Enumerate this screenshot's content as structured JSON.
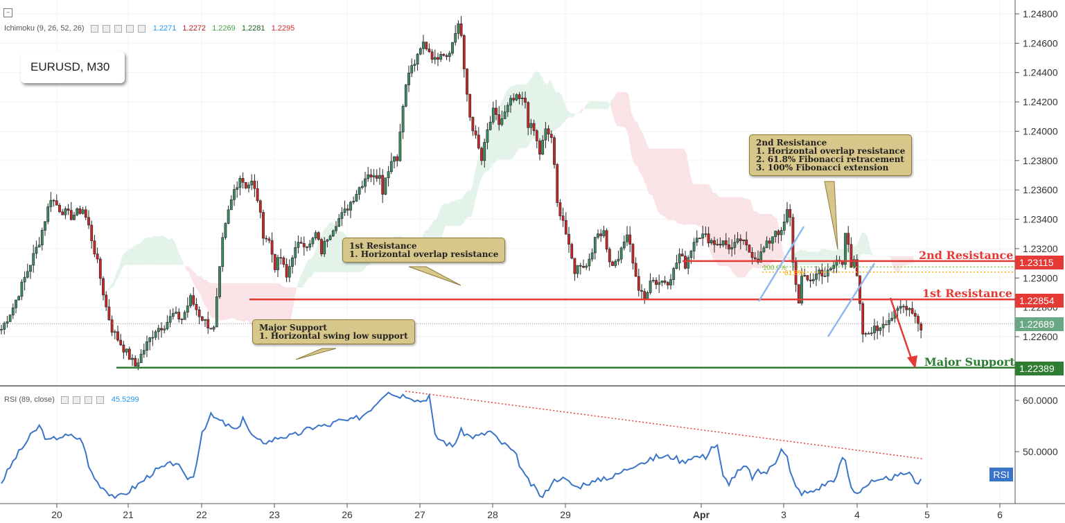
{
  "chart_data": {
    "type": "candlestick",
    "symbol_box": "EURUSD, M30",
    "price_axis": {
      "ticks": [
        "1.24800",
        "1.24600",
        "1.24400",
        "1.24200",
        "1.24000",
        "1.23800",
        "1.23600",
        "1.23400",
        "1.23200",
        "1.23000",
        "1.22800",
        "1.22600"
      ],
      "ylim": [
        1.2223,
        1.2489
      ]
    },
    "time_axis": {
      "ticks": [
        "20",
        "21",
        "22",
        "23",
        "26",
        "27",
        "28",
        "29",
        "Apr",
        "3",
        "4",
        "5",
        "6"
      ]
    },
    "ichimoku": {
      "label": "Ichimoku (9, 26, 52, 26)",
      "values": [
        {
          "text": "1.2271",
          "color": "#2196f3"
        },
        {
          "text": "1.2272",
          "color": "#b71c1c"
        },
        {
          "text": "1.2269",
          "color": "#43a047"
        },
        {
          "text": "1.2281",
          "color": "#1b5e20"
        },
        {
          "text": "1.2295",
          "color": "#d32f2f"
        }
      ]
    },
    "close_price_points": [
      [
        0,
        1.2265
      ],
      [
        4,
        1.228
      ],
      [
        8,
        1.23
      ],
      [
        13,
        1.2325
      ],
      [
        17,
        1.2355
      ],
      [
        20,
        1.2347
      ],
      [
        24,
        1.2342
      ],
      [
        28,
        1.2347
      ],
      [
        30,
        1.2335
      ],
      [
        33,
        1.231
      ],
      [
        36,
        1.228
      ],
      [
        38,
        1.2265
      ],
      [
        42,
        1.2252
      ],
      [
        46,
        1.224
      ],
      [
        50,
        1.2255
      ],
      [
        53,
        1.2265
      ],
      [
        56,
        1.2268
      ],
      [
        59,
        1.2275
      ],
      [
        62,
        1.2272
      ],
      [
        65,
        1.2286
      ],
      [
        68,
        1.2275
      ],
      [
        71,
        1.2268
      ],
      [
        73,
        1.2265
      ],
      [
        76,
        1.2325
      ],
      [
        78,
        1.2345
      ],
      [
        80,
        1.236
      ],
      [
        82,
        1.2369
      ],
      [
        84,
        1.2363
      ],
      [
        86,
        1.2365
      ],
      [
        88,
        1.2354
      ],
      [
        90,
        1.233
      ],
      [
        92,
        1.2325
      ],
      [
        94,
        1.2308
      ],
      [
        96,
        1.2314
      ],
      [
        98,
        1.23
      ],
      [
        100,
        1.2316
      ],
      [
        103,
        1.2325
      ],
      [
        106,
        1.2322
      ],
      [
        108,
        1.233
      ],
      [
        110,
        1.2318
      ],
      [
        112,
        1.2328
      ],
      [
        115,
        1.2338
      ],
      [
        118,
        1.2345
      ],
      [
        121,
        1.2355
      ],
      [
        124,
        1.2365
      ],
      [
        126,
        1.2372
      ],
      [
        128,
        1.2368
      ],
      [
        130,
        1.2372
      ],
      [
        131,
        1.236
      ],
      [
        133,
        1.2375
      ],
      [
        135,
        1.2385
      ],
      [
        136,
        1.238
      ],
      [
        138,
        1.242
      ],
      [
        140,
        1.244
      ],
      [
        143,
        1.245
      ],
      [
        145,
        1.246
      ],
      [
        147,
        1.2455
      ],
      [
        149,
        1.2448
      ],
      [
        151,
        1.2455
      ],
      [
        153,
        1.2452
      ],
      [
        155,
        1.246
      ],
      [
        157,
        1.2474
      ],
      [
        158,
        1.2465
      ],
      [
        159,
        1.244
      ],
      [
        161,
        1.241
      ],
      [
        163,
        1.2395
      ],
      [
        165,
        1.238
      ],
      [
        167,
        1.24
      ],
      [
        169,
        1.2413
      ],
      [
        171,
        1.2405
      ],
      [
        173,
        1.2412
      ],
      [
        175,
        1.242
      ],
      [
        177,
        1.2422
      ],
      [
        180,
        1.242
      ],
      [
        181,
        1.2405
      ],
      [
        183,
        1.24
      ],
      [
        185,
        1.2385
      ],
      [
        187,
        1.24
      ],
      [
        189,
        1.2396
      ],
      [
        190,
        1.2375
      ],
      [
        191,
        1.235
      ],
      [
        193,
        1.234
      ],
      [
        195,
        1.232
      ],
      [
        197,
        1.2305
      ],
      [
        199,
        1.231
      ],
      [
        201,
        1.2308
      ],
      [
        203,
        1.232
      ],
      [
        205,
        1.233
      ],
      [
        207,
        1.2333
      ],
      [
        209,
        1.231
      ],
      [
        211,
        1.231
      ],
      [
        213,
        1.2318
      ],
      [
        215,
        1.233
      ],
      [
        217,
        1.2312
      ],
      [
        219,
        1.2292
      ],
      [
        221,
        1.2285
      ],
      [
        223,
        1.23
      ],
      [
        225,
        1.2297
      ],
      [
        227,
        1.2298
      ],
      [
        229,
        1.2298
      ],
      [
        231,
        1.2305
      ],
      [
        233,
        1.2316
      ],
      [
        235,
        1.2309
      ],
      [
        237,
        1.232
      ],
      [
        239,
        1.233
      ],
      [
        242,
        1.2328
      ],
      [
        245,
        1.2324
      ],
      [
        248,
        1.2324
      ],
      [
        251,
        1.232
      ],
      [
        254,
        1.2326
      ],
      [
        257,
        1.2318
      ],
      [
        260,
        1.2313
      ],
      [
        262,
        1.232
      ],
      [
        264,
        1.2325
      ],
      [
        266,
        1.2333
      ],
      [
        268,
        1.233
      ],
      [
        270,
        1.2345
      ],
      [
        271,
        1.234
      ],
      [
        272,
        1.2312
      ],
      [
        273,
        1.2295
      ],
      [
        274,
        1.2285
      ],
      [
        275,
        1.23
      ],
      [
        277,
        1.2298
      ],
      [
        279,
        1.23
      ],
      [
        281,
        1.2305
      ],
      [
        283,
        1.2302
      ],
      [
        285,
        1.2305
      ],
      [
        287,
        1.2312
      ],
      [
        289,
        1.231
      ],
      [
        290,
        1.2333
      ],
      [
        291,
        1.2325
      ],
      [
        292,
        1.2308
      ],
      [
        293,
        1.231
      ],
      [
        294,
        1.23
      ],
      [
        295,
        1.228
      ],
      [
        296,
        1.2262
      ],
      [
        297,
        1.226
      ],
      [
        299,
        1.2265
      ],
      [
        301,
        1.2265
      ],
      [
        303,
        1.227
      ],
      [
        305,
        1.2272
      ],
      [
        307,
        1.2275
      ],
      [
        309,
        1.228
      ],
      [
        311,
        1.2281
      ],
      [
        313,
        1.2278
      ],
      [
        315,
        1.227
      ],
      [
        316,
        1.2266
      ]
    ],
    "levels": [
      {
        "label": "2nd Resistance",
        "value": "1.23115",
        "color": "#e53935"
      },
      {
        "label": "1st Resistance",
        "value": "1.22854",
        "color": "#e53935"
      },
      {
        "label": "Major Support",
        "value": "1.22389",
        "color": "#2e7d32"
      }
    ],
    "last_price": {
      "value": "1.22689",
      "color": "#6aa785"
    },
    "fib_labels": [
      "100.0%",
      "61.8%"
    ],
    "annotations": [
      {
        "title": "2nd Resistance",
        "lines": [
          "1. Horizontal overlap resistance",
          "2. 61.8% Fibonacci retracement",
          "3. 100% Fibonacci extension"
        ]
      },
      {
        "title": "1st Resistance",
        "lines": [
          "1. Horizontal overlap resistance"
        ]
      },
      {
        "title": "Major Support",
        "lines": [
          "1. Horizontal swing low support"
        ]
      }
    ],
    "rsi": {
      "label": "RSI (89, close)",
      "value": "45.5299",
      "badge": "RSI",
      "ticks": [
        "60.0000",
        "50.0000"
      ],
      "ylim": [
        40.5,
        63
      ],
      "points": [
        [
          0,
          44
        ],
        [
          5,
          49
        ],
        [
          10,
          53
        ],
        [
          13,
          55
        ],
        [
          16,
          52
        ],
        [
          20,
          53
        ],
        [
          25,
          53
        ],
        [
          28,
          52
        ],
        [
          30,
          47
        ],
        [
          33,
          44
        ],
        [
          37,
          42
        ],
        [
          40,
          41
        ],
        [
          43,
          42
        ],
        [
          48,
          44
        ],
        [
          52,
          46
        ],
        [
          56,
          47
        ],
        [
          60,
          48
        ],
        [
          63,
          45
        ],
        [
          66,
          45
        ],
        [
          69,
          54
        ],
        [
          72,
          57
        ],
        [
          75,
          56
        ],
        [
          78,
          55
        ],
        [
          81,
          54
        ],
        [
          83,
          57
        ],
        [
          85,
          54
        ],
        [
          88,
          52
        ],
        [
          92,
          52
        ],
        [
          96,
          53
        ],
        [
          100,
          53
        ],
        [
          104,
          54
        ],
        [
          108,
          55
        ],
        [
          112,
          55
        ],
        [
          116,
          56
        ],
        [
          120,
          56
        ],
        [
          124,
          57
        ],
        [
          128,
          59
        ],
        [
          131,
          61
        ],
        [
          133,
          62
        ],
        [
          135,
          61
        ],
        [
          137,
          61
        ],
        [
          140,
          61
        ],
        [
          143,
          60
        ],
        [
          145,
          60
        ],
        [
          147,
          61
        ],
        [
          149,
          53
        ],
        [
          152,
          52
        ],
        [
          155,
          51
        ],
        [
          158,
          54
        ],
        [
          161,
          53
        ],
        [
          164,
          53
        ],
        [
          168,
          54
        ],
        [
          171,
          52
        ],
        [
          174,
          51
        ],
        [
          177,
          49
        ],
        [
          180,
          45
        ],
        [
          183,
          43
        ],
        [
          186,
          41
        ],
        [
          189,
          44
        ],
        [
          192,
          45
        ],
        [
          195,
          44
        ],
        [
          198,
          43
        ],
        [
          201,
          44
        ],
        [
          204,
          44
        ],
        [
          207,
          45
        ],
        [
          210,
          45
        ],
        [
          213,
          46
        ],
        [
          216,
          47
        ],
        [
          219,
          48
        ],
        [
          222,
          48
        ],
        [
          225,
          49
        ],
        [
          228,
          49
        ],
        [
          231,
          49
        ],
        [
          234,
          48
        ],
        [
          237,
          49
        ],
        [
          240,
          49
        ],
        [
          242,
          49
        ],
        [
          244,
          51
        ],
        [
          246,
          51
        ],
        [
          248,
          45
        ],
        [
          250,
          44
        ],
        [
          253,
          46
        ],
        [
          256,
          47
        ],
        [
          258,
          45
        ],
        [
          260,
          46
        ],
        [
          263,
          46
        ],
        [
          266,
          48
        ],
        [
          268,
          51
        ],
        [
          270,
          49
        ],
        [
          271,
          46
        ],
        [
          273,
          43
        ],
        [
          275,
          42
        ],
        [
          278,
          42
        ],
        [
          281,
          43
        ],
        [
          284,
          44
        ],
        [
          287,
          45
        ],
        [
          289,
          49
        ],
        [
          290,
          48
        ],
        [
          292,
          43
        ],
        [
          294,
          42
        ],
        [
          296,
          43
        ],
        [
          299,
          44
        ],
        [
          302,
          44
        ],
        [
          305,
          45
        ],
        [
          308,
          45
        ],
        [
          311,
          46
        ],
        [
          313,
          45
        ],
        [
          315,
          44
        ],
        [
          316,
          45
        ]
      ]
    }
  }
}
